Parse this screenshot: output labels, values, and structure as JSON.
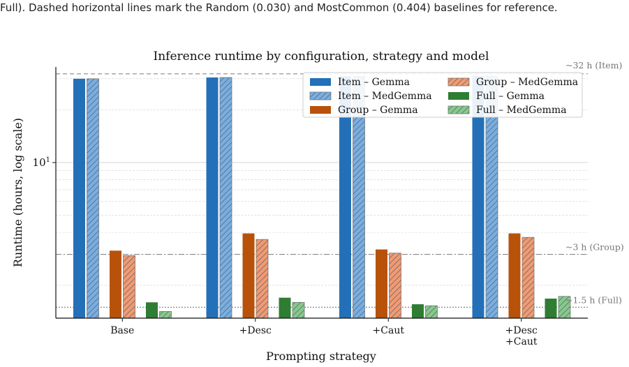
{
  "caption": "Full). Dashed horizontal lines mark the Random (0.030) and MostCommon (0.404) baselines for reference.",
  "chart_data": {
    "type": "bar",
    "title": "Inference runtime by configuration, strategy and model",
    "xlabel": "Prompting strategy",
    "ylabel": "Runtime (hours, log scale)",
    "y_scale": "log",
    "ylim": [
      1.3,
      35
    ],
    "y_tick_labels": [
      {
        "value": 10,
        "label": "10^1"
      }
    ],
    "grid": "horizontal",
    "legend_position": "top-right",
    "categories": [
      "Base",
      "+Desc",
      "+Caut",
      "+Desc\n+Caut"
    ],
    "series": [
      {
        "name": "Item – Gemma",
        "color": "#2370b8",
        "hatch": false,
        "values": [
          30,
          30.5,
          31,
          31
        ]
      },
      {
        "name": "Item – MedGemma",
        "color": "#7aaee0",
        "hatch": true,
        "values": [
          30,
          30.5,
          31,
          31
        ]
      },
      {
        "name": "Group – Gemma",
        "color": "#b8520a",
        "hatch": false,
        "values": [
          3.15,
          3.95,
          3.2,
          3.95
        ]
      },
      {
        "name": "Group – MedGemma",
        "color": "#f29a70",
        "hatch": true,
        "values": [
          2.95,
          3.65,
          3.05,
          3.75
        ]
      },
      {
        "name": "Full – Gemma",
        "color": "#2e7d32",
        "hatch": false,
        "values": [
          1.6,
          1.7,
          1.56,
          1.68
        ]
      },
      {
        "name": "Full – MedGemma",
        "color": "#88c98a",
        "hatch": true,
        "values": [
          1.42,
          1.6,
          1.53,
          1.73
        ]
      }
    ],
    "reference_lines": [
      {
        "value": 32,
        "label": "~32 h  (Item)",
        "style": "dashed"
      },
      {
        "value": 3,
        "label": "~3 h  (Group)",
        "style": "dashdot"
      },
      {
        "value": 1.5,
        "label": "~1.5 h  (Full)",
        "style": "dotted"
      }
    ]
  }
}
